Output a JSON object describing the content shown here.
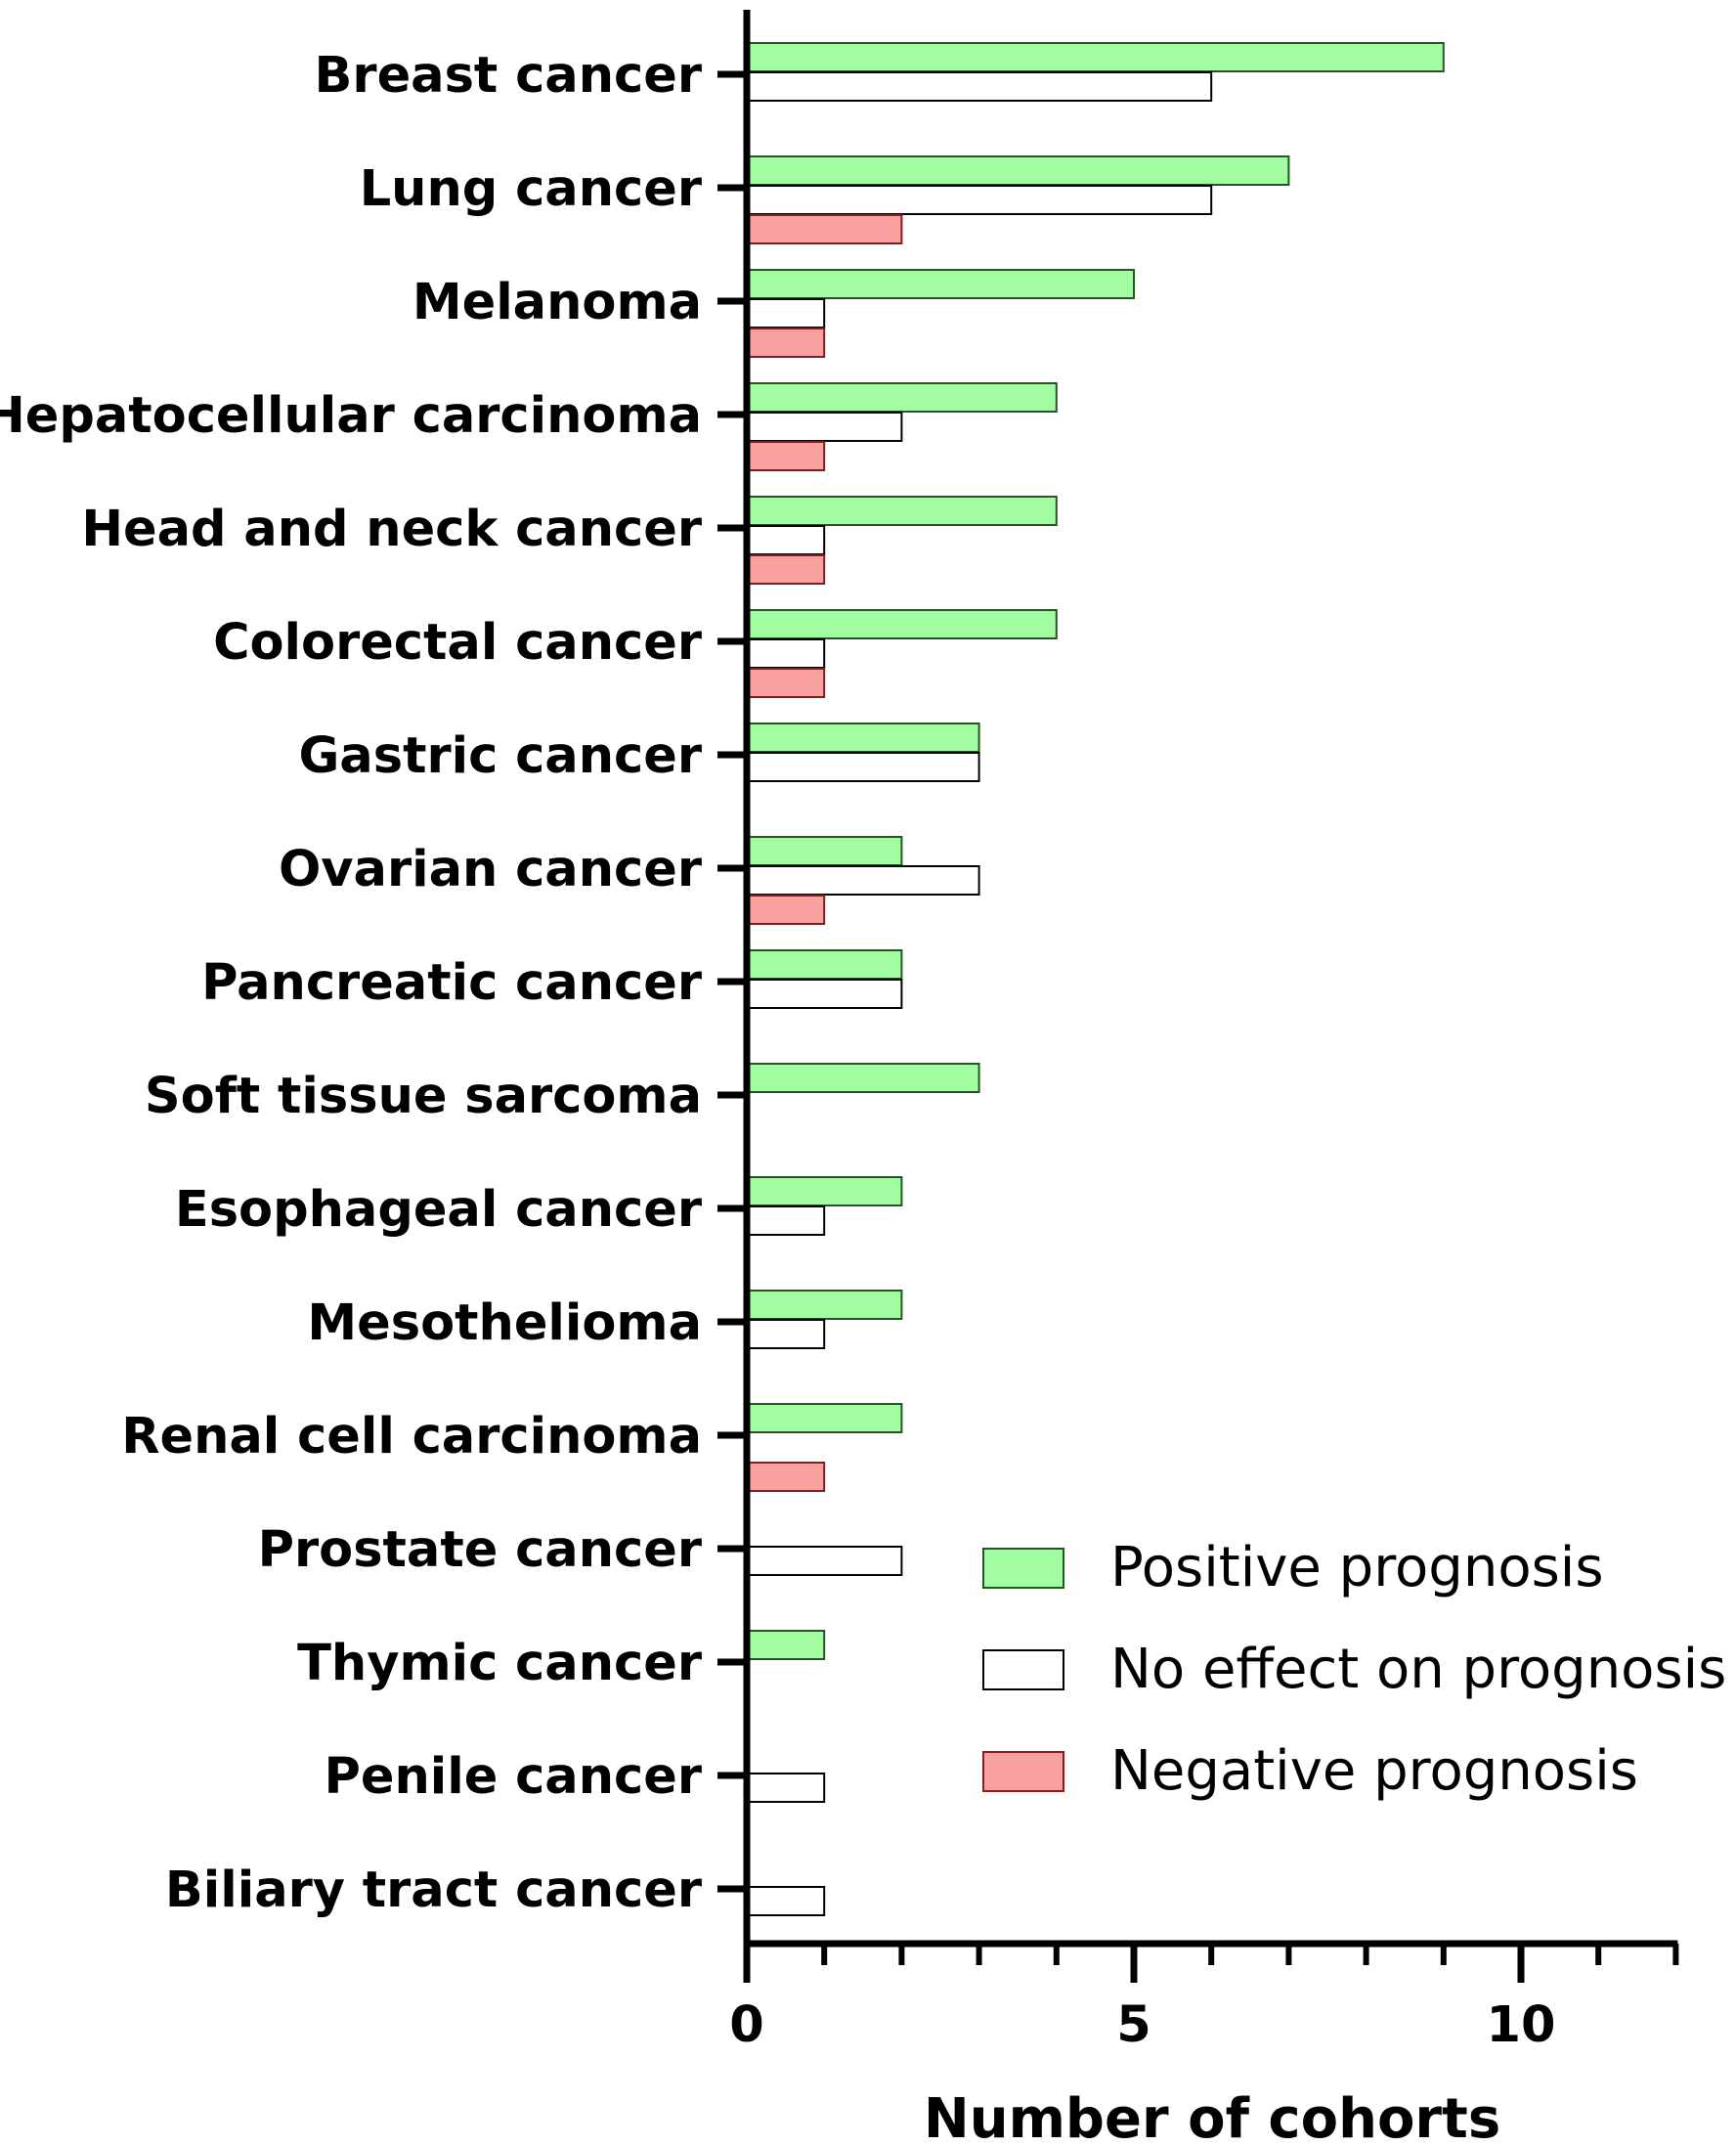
{
  "chart_data": {
    "type": "bar",
    "orientation": "horizontal",
    "categories": [
      "Breast cancer",
      "Lung cancer",
      "Melanoma",
      "Hepatocellular carcinoma",
      "Head and neck cancer",
      "Colorectal cancer",
      "Gastric cancer",
      "Ovarian cancer",
      "Pancreatic cancer",
      "Soft tissue sarcoma",
      "Esophageal cancer",
      "Mesothelioma",
      "Renal cell carcinoma",
      "Prostate cancer",
      "Thymic cancer",
      "Penile cancer",
      "Biliary tract cancer"
    ],
    "series": [
      {
        "name": "Positive prognosis",
        "color": "#a2fca2",
        "stroke": "#1d5a1d",
        "values": [
          9,
          7,
          5,
          4,
          4,
          4,
          3,
          2,
          2,
          3,
          2,
          2,
          2,
          0,
          1,
          0,
          0
        ]
      },
      {
        "name": "No effect on prognosis",
        "color": "#ffffff",
        "stroke": "#000000",
        "values": [
          6,
          6,
          1,
          2,
          1,
          1,
          3,
          3,
          2,
          0,
          1,
          1,
          0,
          2,
          0,
          1,
          1
        ]
      },
      {
        "name": "Negative prognosis",
        "color": "#f9a0a0",
        "stroke": "#8b1a1a",
        "values": [
          0,
          2,
          1,
          1,
          1,
          1,
          0,
          1,
          0,
          0,
          0,
          0,
          1,
          0,
          0,
          0,
          0
        ]
      }
    ],
    "xlabel": "Number of cohorts",
    "ylabel": "",
    "xlim": [
      0,
      12
    ],
    "xticks": [
      0,
      5,
      10
    ],
    "minor_ticks_step": 1,
    "grid": false,
    "legend_position": "bottom-right"
  }
}
